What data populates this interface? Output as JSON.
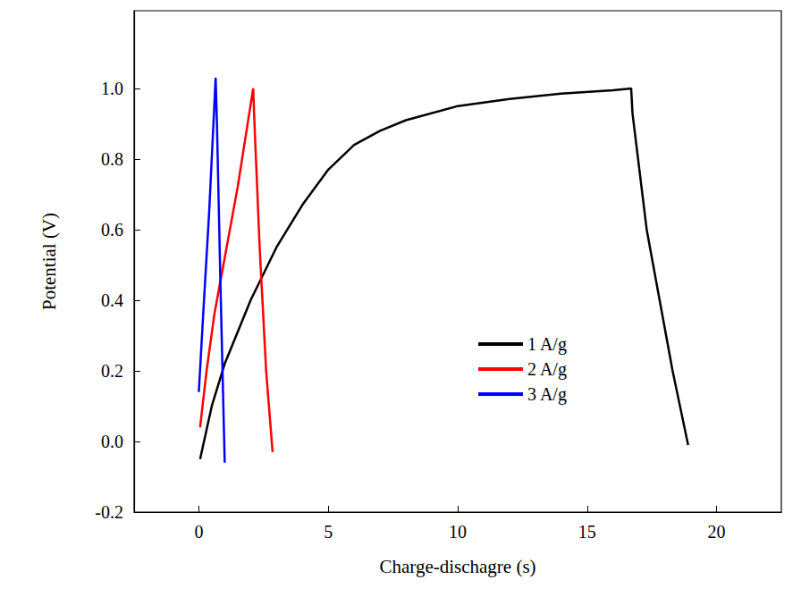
{
  "chart_data": {
    "type": "line",
    "x_label": "Charge-dischagre (s)",
    "y_label": "Potential (V)",
    "xlim": [
      -2.5,
      22.5
    ],
    "xticks": [
      0,
      5,
      10,
      15,
      20
    ],
    "ylim": [
      -0.2,
      1.22
    ],
    "yticks": [
      -0.2,
      {
        "value": 0,
        "label": "0.0"
      },
      0.2,
      0.4,
      0.6,
      0.8,
      {
        "value": 1,
        "label": "1.0"
      }
    ],
    "grid": false,
    "legend": "lower center",
    "series": [
      {
        "name": "1 A/g",
        "color": "#000000",
        "x": [
          0.05,
          0.5,
          1,
          2,
          3,
          4,
          5,
          6,
          7,
          8,
          10,
          12,
          14,
          16,
          16.7,
          16.75,
          17.3,
          17.8,
          18.3,
          18.9
        ],
        "values": [
          -0.05,
          0.1,
          0.22,
          0.4,
          0.55,
          0.67,
          0.77,
          0.84,
          0.88,
          0.91,
          0.95,
          0.97,
          0.985,
          0.995,
          1.0,
          0.93,
          0.6,
          0.4,
          0.2,
          -0.01
        ]
      },
      {
        "name": "2 A/g",
        "color": "#ff0000",
        "x": [
          0.05,
          0.3,
          0.6,
          1,
          1.5,
          2.1,
          2.15,
          2.35,
          2.6,
          2.85
        ],
        "values": [
          0.04,
          0.2,
          0.36,
          0.52,
          0.72,
          1.0,
          0.9,
          0.55,
          0.2,
          -0.03
        ]
      },
      {
        "name": "3 A/g",
        "color": "#0000ff",
        "x": [
          0.0,
          0.2,
          0.4,
          0.65,
          0.7,
          0.85,
          1.0
        ],
        "values": [
          0.14,
          0.4,
          0.65,
          1.03,
          0.9,
          0.4,
          -0.06
        ]
      }
    ]
  }
}
